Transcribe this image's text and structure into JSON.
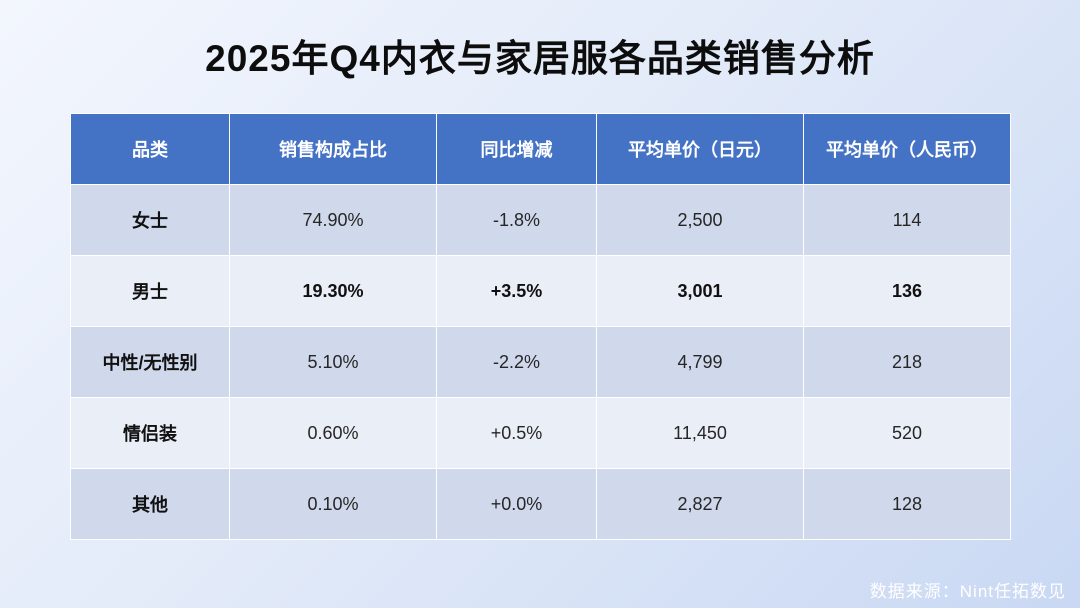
{
  "title": "2025年Q4内衣与家居服各品类销售分析",
  "source": "数据来源：Nint任拓数见",
  "colors": {
    "header": "#4472c4",
    "row_odd": "#d0d9ec",
    "row_even": "#e9eef7"
  },
  "chart_data": {
    "type": "table",
    "columns": [
      "品类",
      "销售构成占比",
      "同比增减",
      "平均单价（日元）",
      "平均单价（人民币）"
    ],
    "rows": [
      [
        "女士",
        "74.90%",
        "-1.8%",
        "2,500",
        "114"
      ],
      [
        "男士",
        "19.30%",
        "+3.5%",
        "3,001",
        "136"
      ],
      [
        "中性/无性别",
        "5.10%",
        "-2.2%",
        "4,799",
        "218"
      ],
      [
        "情侣装",
        "0.60%",
        "+0.5%",
        "11,450",
        "520"
      ],
      [
        "其他",
        "0.10%",
        "+0.0%",
        "2,827",
        "128"
      ]
    ],
    "bold_row_indices": [
      1
    ]
  }
}
